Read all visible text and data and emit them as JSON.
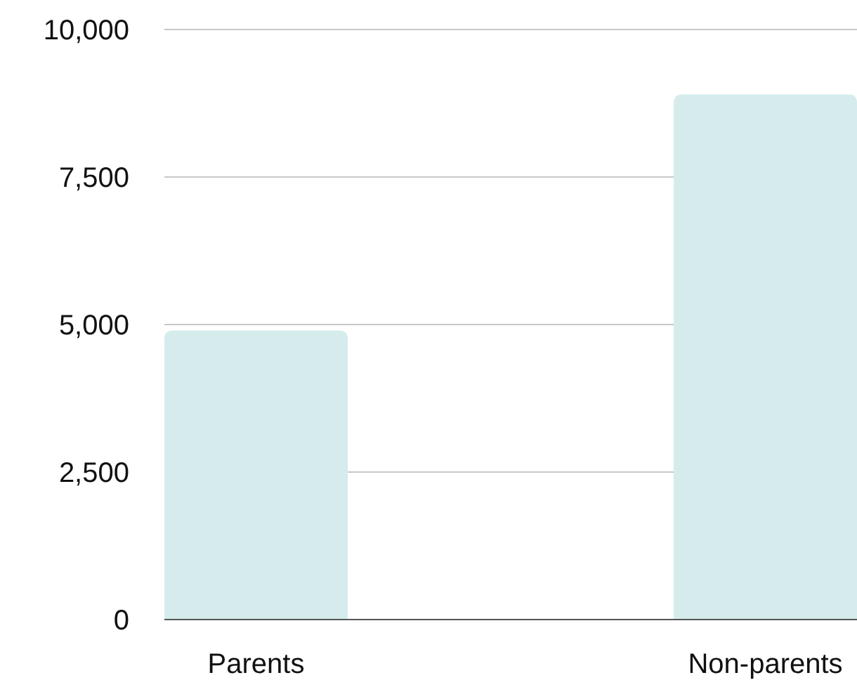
{
  "chart_data": {
    "type": "bar",
    "categories": [
      "Parents",
      "Non-parents"
    ],
    "values": [
      4900,
      8900
    ],
    "color": "#d6ecec",
    "ylim": [
      0,
      10000
    ],
    "yticks": [
      {
        "value": 0,
        "label": "0"
      },
      {
        "value": 2500,
        "label": "2,500"
      },
      {
        "value": 5000,
        "label": "5,000"
      },
      {
        "value": 7500,
        "label": "7,500"
      },
      {
        "value": 10000,
        "label": "10,000"
      }
    ],
    "grid": "y"
  }
}
